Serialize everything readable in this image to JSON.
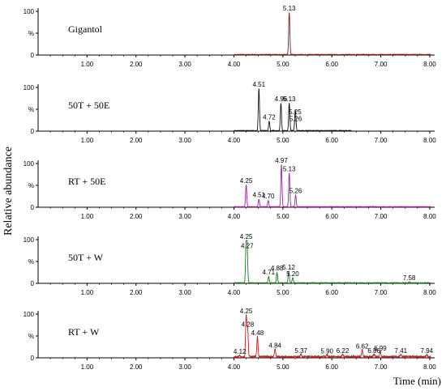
{
  "chart_data": {
    "type": "line",
    "ylabel": "Relative abundance",
    "xlabel": "Time (min)",
    "xlim": [
      0,
      8.1
    ],
    "x_ticks": [
      "1.00",
      "2.00",
      "3.00",
      "4.00",
      "5.00",
      "6.00",
      "7.00",
      "8.00"
    ],
    "y_ticks": [
      "100",
      "%",
      "0"
    ],
    "grid": false,
    "panels": [
      {
        "name": "Gigantol",
        "color": "#8b1a1a",
        "trace_start": 4.0,
        "trace_end": 8.02,
        "peaks": [
          {
            "x": 5.13,
            "y": 100,
            "label": "5.13"
          }
        ]
      },
      {
        "name": "50T + 50E",
        "color": "#111111",
        "trace_start": 4.0,
        "trace_end": 6.4,
        "peaks": [
          {
            "x": 4.51,
            "y": 100,
            "label": "4.51"
          },
          {
            "x": 4.72,
            "y": 22,
            "label": "4.72"
          },
          {
            "x": 4.96,
            "y": 65,
            "label": "4.96"
          },
          {
            "x": 5.13,
            "y": 65,
            "label": "5.13"
          },
          {
            "x": 5.25,
            "y": 35,
            "label": "5.25"
          },
          {
            "x": 5.26,
            "y": 18,
            "label": "5.26"
          }
        ]
      },
      {
        "name": "RT + 50E",
        "color": "#a020a0",
        "trace_start": 4.0,
        "trace_end": 8.02,
        "peaks": [
          {
            "x": 4.25,
            "y": 52,
            "label": "4.25"
          },
          {
            "x": 4.51,
            "y": 18,
            "label": "4.51"
          },
          {
            "x": 4.7,
            "y": 15,
            "label": "4.70"
          },
          {
            "x": 4.97,
            "y": 100,
            "label": "4.97"
          },
          {
            "x": 5.13,
            "y": 80,
            "label": "5.13"
          },
          {
            "x": 5.26,
            "y": 28,
            "label": "5.26"
          }
        ]
      },
      {
        "name": "50T + W",
        "color": "#1f7a1f",
        "trace_start": 4.0,
        "trace_end": 8.02,
        "peaks": [
          {
            "x": 4.25,
            "y": 100,
            "label": "4.25"
          },
          {
            "x": 4.27,
            "y": 78,
            "label": "4.27"
          },
          {
            "x": 4.71,
            "y": 15,
            "label": "4.71"
          },
          {
            "x": 4.88,
            "y": 25,
            "label": "4.88"
          },
          {
            "x": 5.12,
            "y": 27,
            "label": "5.12"
          },
          {
            "x": 5.2,
            "y": 12,
            "label": "5.20"
          },
          {
            "x": 7.58,
            "y": 2,
            "label": "7.58"
          }
        ]
      },
      {
        "name": "RT + W",
        "color": "#c81e1e",
        "trace_start": 4.0,
        "trace_end": 8.02,
        "peaks": [
          {
            "x": 4.12,
            "y": 4,
            "label": "4.12"
          },
          {
            "x": 4.25,
            "y": 100,
            "label": "4.25"
          },
          {
            "x": 4.28,
            "y": 68,
            "label": "4.28"
          },
          {
            "x": 4.48,
            "y": 48,
            "label": "4.48"
          },
          {
            "x": 4.84,
            "y": 18,
            "label": "4.84"
          },
          {
            "x": 5.37,
            "y": 6,
            "label": "5.37"
          },
          {
            "x": 5.9,
            "y": 5,
            "label": "5.90"
          },
          {
            "x": 6.22,
            "y": 6,
            "label": "6.22"
          },
          {
            "x": 6.62,
            "y": 16,
            "label": "6.62"
          },
          {
            "x": 6.86,
            "y": 6,
            "label": "6.86"
          },
          {
            "x": 6.99,
            "y": 12,
            "label": "6.99"
          },
          {
            "x": 7.41,
            "y": 6,
            "label": "7.41"
          },
          {
            "x": 7.94,
            "y": 6,
            "label": "7.94"
          }
        ]
      }
    ]
  }
}
